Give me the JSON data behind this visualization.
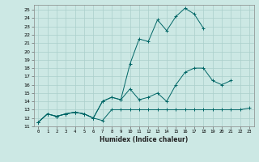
{
  "title": "",
  "xlabel": "Humidex (Indice chaleur)",
  "background_color": "#cce8e4",
  "grid_color": "#aacfcb",
  "line_color": "#006666",
  "xlim": [
    -0.5,
    23.5
  ],
  "ylim": [
    11,
    25.6
  ],
  "yticks": [
    11,
    12,
    13,
    14,
    15,
    16,
    17,
    18,
    19,
    20,
    21,
    22,
    23,
    24,
    25
  ],
  "xticks": [
    0,
    1,
    2,
    3,
    4,
    5,
    6,
    7,
    8,
    9,
    10,
    11,
    12,
    13,
    14,
    15,
    16,
    17,
    18,
    19,
    20,
    21,
    22,
    23
  ],
  "line1_x": [
    0,
    1,
    2,
    3,
    4,
    5,
    6,
    7,
    8,
    9,
    10,
    11,
    12,
    13,
    14,
    15,
    16,
    17,
    18,
    19,
    20,
    21,
    22,
    23
  ],
  "line1_y": [
    11.5,
    12.5,
    12.2,
    12.5,
    12.7,
    12.5,
    12.0,
    11.7,
    13.0,
    13.0,
    13.0,
    13.0,
    13.0,
    13.0,
    13.0,
    13.0,
    13.0,
    13.0,
    13.0,
    13.0,
    13.0,
    13.0,
    13.0,
    13.2
  ],
  "line2_x": [
    0,
    1,
    2,
    3,
    4,
    5,
    6,
    7,
    8,
    9,
    10,
    11,
    12,
    13,
    14,
    15,
    16,
    17,
    18,
    19,
    20,
    21
  ],
  "line2_y": [
    11.5,
    12.5,
    12.2,
    12.5,
    12.7,
    12.5,
    12.0,
    14.0,
    14.5,
    14.2,
    15.5,
    14.2,
    14.5,
    15.0,
    14.0,
    16.0,
    17.5,
    18.0,
    18.0,
    16.5,
    16.0,
    16.5
  ],
  "line3_x": [
    0,
    1,
    2,
    3,
    4,
    5,
    6,
    7,
    8,
    9,
    10,
    11,
    12,
    13,
    14,
    15,
    16,
    17,
    18
  ],
  "line3_y": [
    11.5,
    12.5,
    12.2,
    12.5,
    12.7,
    12.5,
    12.0,
    14.0,
    14.5,
    14.2,
    18.5,
    21.5,
    21.2,
    23.8,
    22.5,
    24.2,
    25.2,
    24.5,
    22.8
  ]
}
